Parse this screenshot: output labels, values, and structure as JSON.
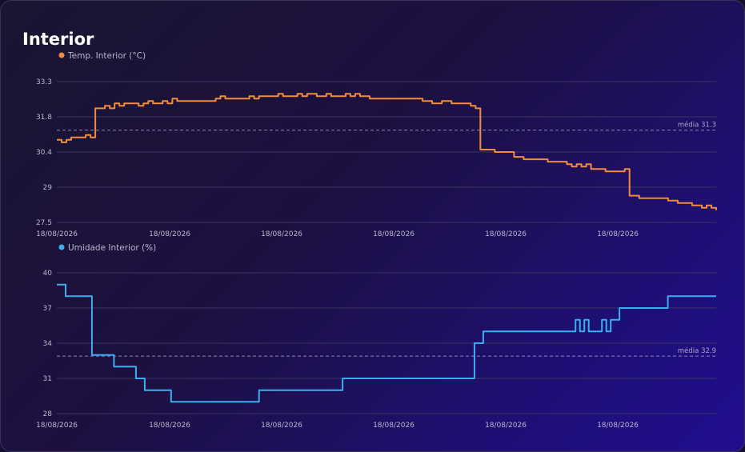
{
  "card": {
    "title": "Interior"
  },
  "chart_data": [
    {
      "type": "line",
      "title": "",
      "color": "#f08c3c",
      "series": [
        {
          "name": "Temp. Interior (°C)",
          "values": [
            30.9,
            30.8,
            30.9,
            31,
            31,
            31,
            31.1,
            31,
            32.2,
            32.2,
            32.3,
            32.2,
            32.4,
            32.3,
            32.4,
            32.4,
            32.4,
            32.3,
            32.4,
            32.5,
            32.4,
            32.4,
            32.5,
            32.4,
            32.6,
            32.5,
            32.5,
            32.5,
            32.5,
            32.5,
            32.5,
            32.5,
            32.5,
            32.6,
            32.7,
            32.6,
            32.6,
            32.6,
            32.6,
            32.6,
            32.7,
            32.6,
            32.7,
            32.7,
            32.7,
            32.7,
            32.8,
            32.7,
            32.7,
            32.7,
            32.8,
            32.7,
            32.8,
            32.8,
            32.7,
            32.7,
            32.8,
            32.7,
            32.7,
            32.7,
            32.8,
            32.7,
            32.8,
            32.7,
            32.7,
            32.6,
            32.6,
            32.6,
            32.6,
            32.6,
            32.6,
            32.6,
            32.6,
            32.6,
            32.6,
            32.6,
            32.5,
            32.5,
            32.4,
            32.4,
            32.5,
            32.5,
            32.4,
            32.4,
            32.4,
            32.4,
            32.3,
            32.2,
            30.5,
            30.5,
            30.5,
            30.4,
            30.4,
            30.4,
            30.4,
            30.2,
            30.2,
            30.1,
            30.1,
            30.1,
            30.1,
            30.1,
            30,
            30,
            30,
            30,
            29.9,
            29.8,
            29.9,
            29.8,
            29.9,
            29.7,
            29.7,
            29.7,
            29.6,
            29.6,
            29.6,
            29.6,
            29.7,
            28.6,
            28.6,
            28.5,
            28.5,
            28.5,
            28.5,
            28.5,
            28.5,
            28.4,
            28.4,
            28.3,
            28.3,
            28.3,
            28.2,
            28.2,
            28.1,
            28.2,
            28.1,
            28
          ]
        }
      ],
      "x_ticks": [
        "18/08/2026",
        "18/08/2026",
        "18/08/2026",
        "18/08/2026",
        "18/08/2026",
        "18/08/2026"
      ],
      "y_ticks": [
        "33.3",
        "31.8",
        "30.4",
        "29",
        "27.5"
      ],
      "ylim": [
        27.5,
        33.3
      ],
      "mean": {
        "value": 31.3,
        "label": "média 31.3"
      },
      "grid": true,
      "legend": "top-left"
    },
    {
      "type": "line",
      "title": "",
      "color": "#3aaff0",
      "series": [
        {
          "name": "Umidade Interior (%)",
          "values": [
            39,
            39,
            38,
            38,
            38,
            38,
            38,
            38,
            33,
            33,
            33,
            33,
            33,
            32,
            32,
            32,
            32,
            32,
            31,
            31,
            30,
            30,
            30,
            30,
            30,
            30,
            29,
            29,
            29,
            29,
            29,
            29,
            29,
            29,
            29,
            29,
            29,
            29,
            29,
            29,
            29,
            29,
            29,
            29,
            29,
            29,
            30,
            30,
            30,
            30,
            30,
            30,
            30,
            30,
            30,
            30,
            30,
            30,
            30,
            30,
            30,
            30,
            30,
            30,
            30,
            31,
            31,
            31,
            31,
            31,
            31,
            31,
            31,
            31,
            31,
            31,
            31,
            31,
            31,
            31,
            31,
            31,
            31,
            31,
            31,
            31,
            31,
            31,
            31,
            31,
            31,
            31,
            31,
            31,
            31,
            34,
            34,
            35,
            35,
            35,
            35,
            35,
            35,
            35,
            35,
            35,
            35,
            35,
            35,
            35,
            35,
            35,
            35,
            35,
            35,
            35,
            35,
            35,
            36,
            35,
            36,
            35,
            35,
            35,
            36,
            35,
            36,
            36,
            37,
            37,
            37,
            37,
            37,
            37,
            37,
            37,
            37,
            37,
            37,
            38,
            38,
            38,
            38,
            38,
            38,
            38,
            38,
            38,
            38,
            38,
            38
          ]
        }
      ],
      "x_ticks": [
        "18/08/2026",
        "18/08/2026",
        "18/08/2026",
        "18/08/2026",
        "18/08/2026",
        "18/08/2026"
      ],
      "y_ticks": [
        "40",
        "37",
        "34",
        "31",
        "28"
      ],
      "ylim": [
        28,
        40
      ],
      "mean": {
        "value": 32.9,
        "label": "média 32.9"
      },
      "grid": true,
      "legend": "top-left"
    }
  ]
}
